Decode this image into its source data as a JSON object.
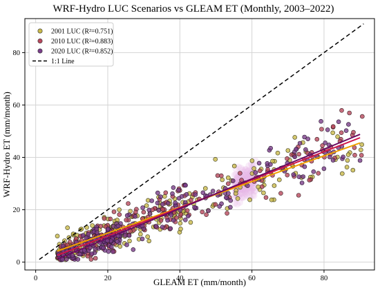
{
  "chart_data": {
    "type": "scatter",
    "title": "WRF-Hydro LUC Scenarios vs GLEAM ET (Monthly, 2003–2022)",
    "xlabel": "GLEAM ET (mm/month)",
    "ylabel": "WRF-Hydro ET (mm/month)",
    "xlim": [
      -3,
      94
    ],
    "ylim": [
      -3,
      93
    ],
    "xticks": [
      "0",
      "20",
      "40",
      "60",
      "80"
    ],
    "yticks": [
      "0",
      "20",
      "40",
      "60",
      "80"
    ],
    "grid": true,
    "legend_position": "top-left",
    "legend": [
      {
        "label": "2001 LUC (R²=0.751)",
        "color": "#c9b94a",
        "type": "marker"
      },
      {
        "label": "2010 LUC (R²=0.883)",
        "color": "#b8485d",
        "type": "marker"
      },
      {
        "label": "2020 LUC (R²=0.852)",
        "color": "#7a3e8a",
        "type": "marker"
      },
      {
        "label": "1:1 Line",
        "color": "#000000",
        "type": "dashed-line"
      }
    ],
    "one_to_one_line": {
      "from": [
        1,
        1
      ],
      "to": [
        91,
        91
      ]
    },
    "fit_lines": [
      {
        "name": "2001 LUC",
        "color": "#f0a000",
        "from": [
          6,
          4.2
        ],
        "to": [
          90,
          45.5
        ]
      },
      {
        "name": "2010 LUC",
        "color": "#d01648",
        "from": [
          6,
          2.6
        ],
        "to": [
          90,
          47.5
        ]
      },
      {
        "name": "2020 LUC",
        "color": "#6a0a62",
        "from": [
          6,
          1.2
        ],
        "to": [
          90,
          48.8
        ]
      }
    ],
    "series": [
      {
        "name": "2001 LUC",
        "color": "#c9b94a",
        "edge": "#3a3a20",
        "points_count": 240,
        "seed": 11,
        "slope": 0.49,
        "intercept": 1.3,
        "noise": 4.3
      },
      {
        "name": "2010 LUC",
        "color": "#b8485d",
        "edge": "#3a1f24",
        "points_count": 240,
        "seed": 23,
        "slope": 0.535,
        "intercept": -0.6,
        "noise": 3.4
      },
      {
        "name": "2020 LUC",
        "color": "#7a3e8a",
        "edge": "#2a1630",
        "points_count": 240,
        "seed": 37,
        "slope": 0.565,
        "intercept": -2.2,
        "noise": 3.7
      }
    ]
  }
}
